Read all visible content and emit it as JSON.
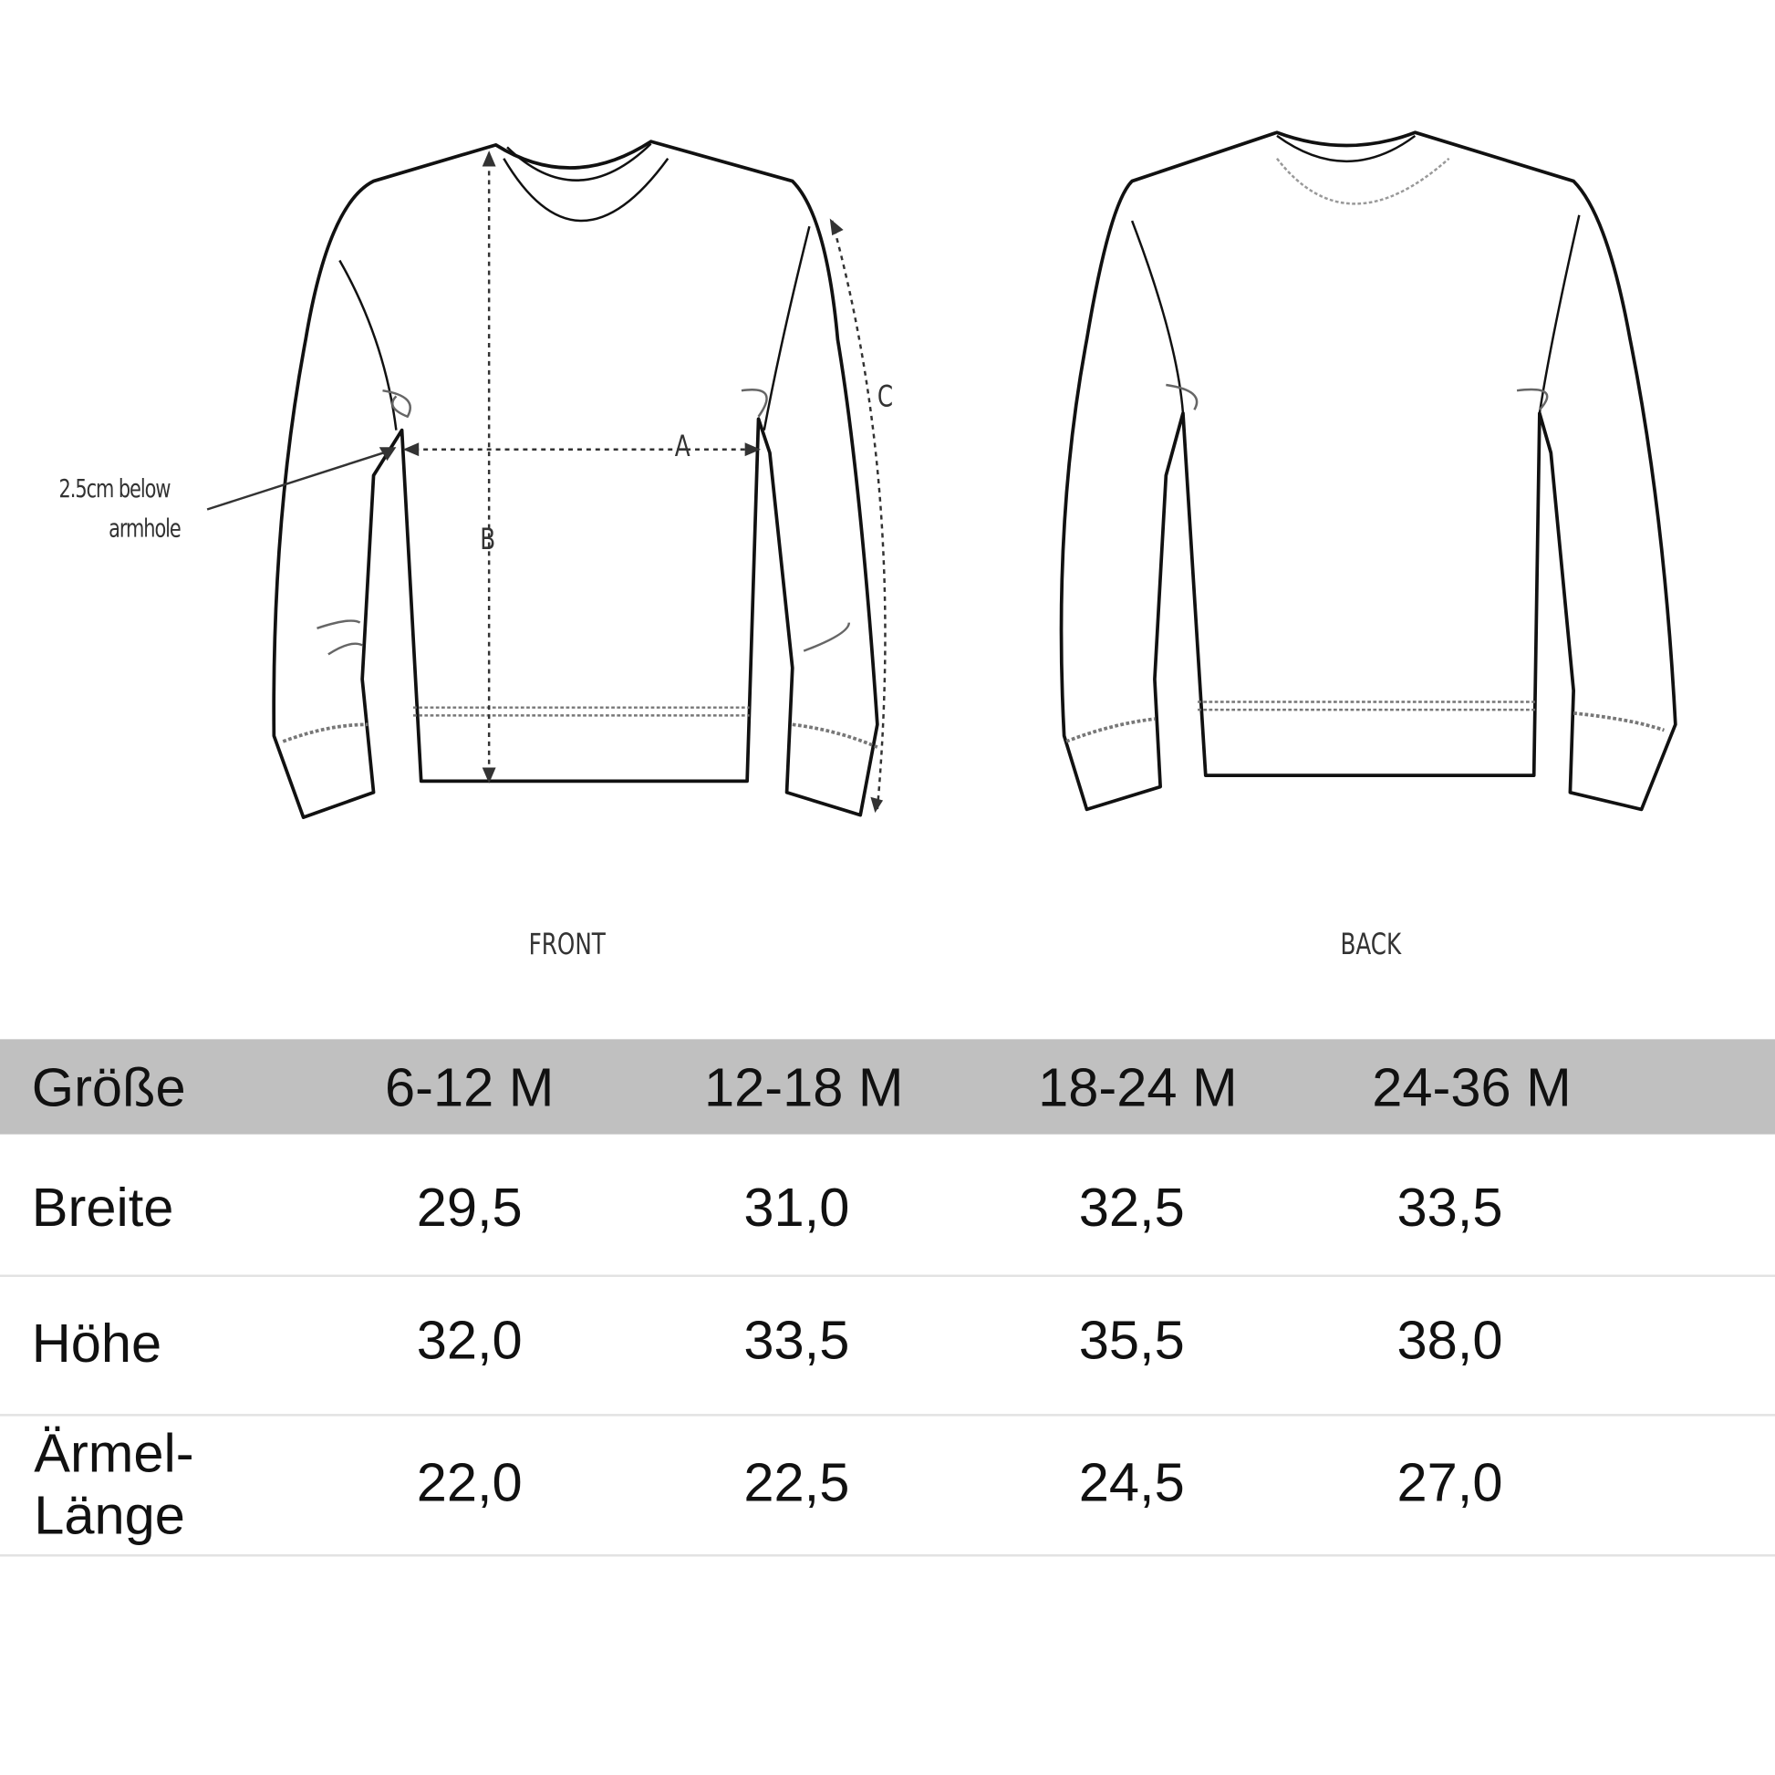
{
  "diagram": {
    "front_label": "FRONT",
    "back_label": "BACK",
    "annotation": "2.5cm below armhole",
    "annotation_line1": "2.5cm below",
    "annotation_line2": "armhole",
    "measure_a": "A",
    "measure_b": "B",
    "measure_c": "C"
  },
  "table": {
    "header": [
      "Größe",
      "6-12 M",
      "12-18 M",
      "18-24 M",
      "24-36 M"
    ],
    "rows": [
      {
        "label": "Breite",
        "values": [
          "29,5",
          "31,0",
          "32,5",
          "33,5"
        ]
      },
      {
        "label": "Höhe",
        "values": [
          "32,0",
          "33,5",
          "35,5",
          "38,0"
        ]
      },
      {
        "label_line1": "Ärmel-",
        "label_line2": "Länge",
        "values": [
          "22,0",
          "22,5",
          "24,5",
          "27,0"
        ]
      }
    ],
    "header_color": "#c0c0c0"
  }
}
